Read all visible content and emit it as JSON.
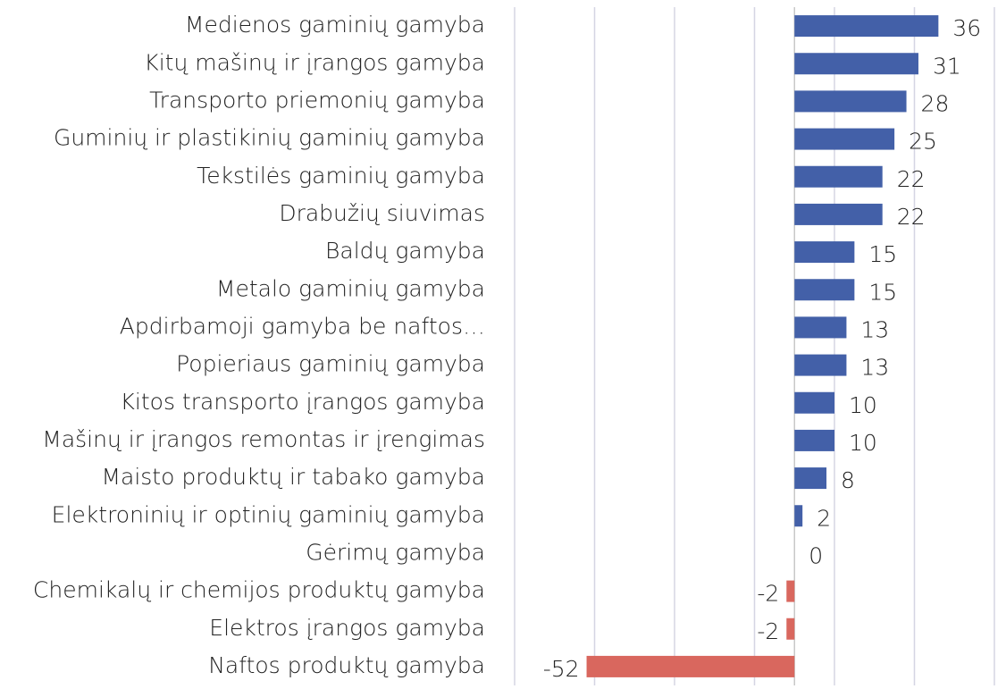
{
  "chart_data": {
    "type": "barh",
    "categories": [
      "Medienos gaminių gamyba",
      "Kitų mašinų ir įrangos gamyba",
      "Transporto priemonių gamyba",
      "Guminių ir plastikinių gaminių gamyba",
      "Tekstilės gaminių gamyba",
      "Drabužių siuvimas",
      "Baldų gamyba",
      "Metalo gaminių gamyba",
      "Apdirbamoji gamyba be naftos…",
      "Popieriaus gaminių gamyba",
      "Kitos transporto įrangos gamyba",
      "Mašinų ir įrangos remontas ir įrengimas",
      "Maisto produktų ir tabako gamyba",
      "Elektroninių ir optinių gaminių gamyba",
      "Gėrimų gamyba",
      "Chemikalų ir chemijos produktų gamyba",
      "Elektros įrangos gamyba",
      "Naftos produktų gamyba"
    ],
    "values": [
      36,
      31,
      28,
      25,
      22,
      22,
      15,
      15,
      13,
      13,
      10,
      10,
      8,
      2,
      0,
      -2,
      -2,
      -52
    ],
    "color": "#4360a8",
    "negative_color": "#d9675e",
    "xlim": [
      -70,
      50
    ],
    "xticks": [
      -70,
      -50,
      -30,
      -10,
      10,
      30,
      50
    ],
    "grid": true
  }
}
